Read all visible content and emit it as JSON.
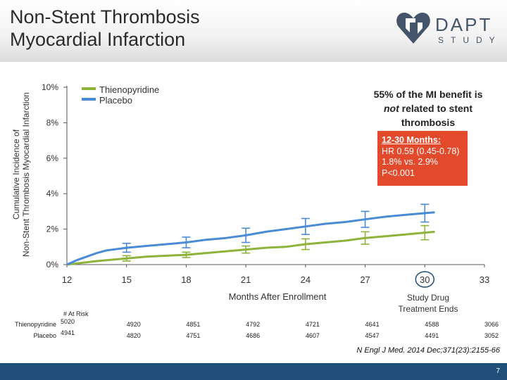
{
  "slide": {
    "title_line1": "Non-Stent Thrombosis",
    "title_line2": "Myocardial Infarction",
    "logo_word": "DAPT",
    "logo_sub": "STUDY",
    "callout_part1": "55% of the MI benefit is",
    "callout_not": "not",
    "callout_part2": " related to stent",
    "callout_part3": "thrombosis",
    "box_title": "12-30 Months:",
    "box_line1": "HR 0.59 (0.45-0.78)",
    "box_line2": "1.8% vs. 2.9%",
    "box_line3": "P<0.001",
    "study_end_line1": "Study Drug",
    "study_end_line2": "Treatment Ends",
    "citation": "N Engl J Med. 2014 Dec;371(23):2155-66",
    "page_number": "7",
    "colors": {
      "thieno": "#8db33a",
      "placebo": "#4a8bd6",
      "box": "#e24a2b",
      "footer": "#1f4e79"
    }
  },
  "chart_data": {
    "type": "line",
    "ylabel_line1": "Cumulative Incidence of",
    "ylabel_line2": "Non-Stent Thrombosis Myocardial Infarction",
    "xlabel": "Months After Enrollment",
    "ylim": [
      0,
      10
    ],
    "xlim": [
      12,
      33
    ],
    "yticks": [
      "0%",
      "2%",
      "4%",
      "6%",
      "8%",
      "10%"
    ],
    "xticks": [
      "12",
      "15",
      "18",
      "21",
      "24",
      "27",
      "30",
      "33"
    ],
    "series": [
      {
        "name": "Thienopyridine",
        "color": "#8db33a",
        "x": [
          12,
          13.5,
          15,
          16,
          17,
          18,
          19,
          20,
          21,
          22,
          23,
          24,
          25,
          26,
          27,
          28,
          29,
          30,
          30.5
        ],
        "y": [
          0,
          0.2,
          0.35,
          0.45,
          0.5,
          0.55,
          0.65,
          0.75,
          0.85,
          0.95,
          1.0,
          1.15,
          1.25,
          1.35,
          1.5,
          1.6,
          1.7,
          1.8,
          1.85
        ],
        "error_bars": [
          {
            "x": 15,
            "y": 0.35,
            "low": 0.2,
            "high": 0.5
          },
          {
            "x": 18,
            "y": 0.55,
            "low": 0.4,
            "high": 0.7
          },
          {
            "x": 21,
            "y": 0.85,
            "low": 0.65,
            "high": 1.05
          },
          {
            "x": 24,
            "y": 1.15,
            "low": 0.85,
            "high": 1.45
          },
          {
            "x": 27,
            "y": 1.5,
            "low": 1.15,
            "high": 1.85
          },
          {
            "x": 30,
            "y": 1.8,
            "low": 1.4,
            "high": 2.2
          }
        ]
      },
      {
        "name": "Placebo",
        "color": "#4a8bd6",
        "x": [
          12,
          12.5,
          13,
          13.5,
          14,
          15,
          16,
          17,
          18,
          19,
          20,
          21,
          22,
          23,
          24,
          25,
          26,
          27,
          28,
          29,
          30,
          30.5
        ],
        "y": [
          0,
          0.25,
          0.45,
          0.65,
          0.8,
          0.95,
          1.05,
          1.15,
          1.25,
          1.4,
          1.5,
          1.65,
          1.85,
          2.0,
          2.15,
          2.3,
          2.4,
          2.55,
          2.7,
          2.8,
          2.9,
          2.95
        ],
        "error_bars": [
          {
            "x": 15,
            "y": 0.95,
            "low": 0.7,
            "high": 1.2
          },
          {
            "x": 18,
            "y": 1.25,
            "low": 0.95,
            "high": 1.55
          },
          {
            "x": 21,
            "y": 1.65,
            "low": 1.25,
            "high": 2.05
          },
          {
            "x": 24,
            "y": 2.15,
            "low": 1.7,
            "high": 2.6
          },
          {
            "x": 27,
            "y": 2.55,
            "low": 2.1,
            "high": 3.0
          },
          {
            "x": 30,
            "y": 2.9,
            "low": 2.4,
            "high": 3.4
          }
        ]
      }
    ],
    "legend": [
      "Thienopyridine",
      "Placebo"
    ],
    "legend_position": "top-left",
    "highlighted_tick": "30",
    "at_risk": {
      "title": "# At Risk",
      "rows": [
        {
          "label": "Thienopyridine",
          "values": [
            "5020",
            "4920",
            "4851",
            "4792",
            "4721",
            "4641",
            "4588",
            "3066"
          ]
        },
        {
          "label": "Placebo",
          "values": [
            "4941",
            "4820",
            "4751",
            "4686",
            "4607",
            "4547",
            "4491",
            "3052"
          ]
        }
      ]
    }
  }
}
